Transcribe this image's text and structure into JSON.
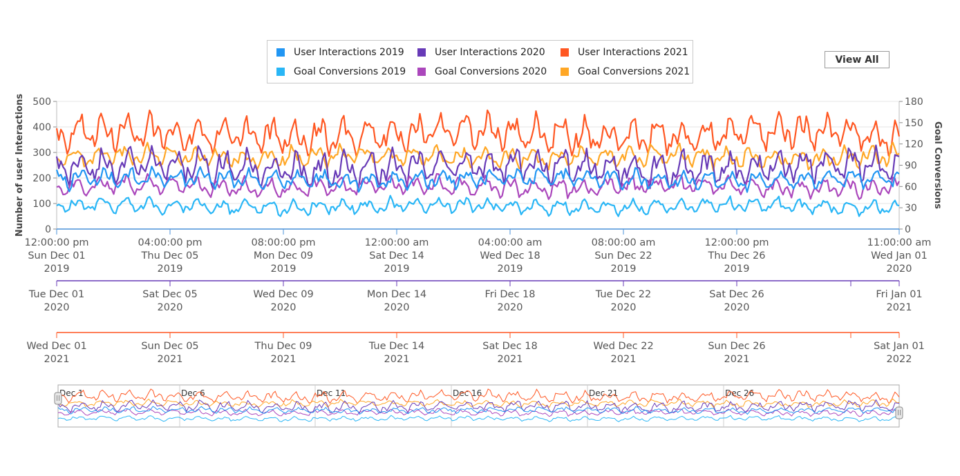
{
  "view_all_label": "View All",
  "legend": [
    {
      "name": "User Interactions 2019",
      "color": "#2196f3"
    },
    {
      "name": "User Interactions 2020",
      "color": "#673ab7"
    },
    {
      "name": "User Interactions 2021",
      "color": "#ff5722"
    },
    {
      "name": "Goal Conversions 2019",
      "color": "#29b6f6"
    },
    {
      "name": "Goal Conversions 2020",
      "color": "#ab47bc"
    },
    {
      "name": "Goal Conversions 2021",
      "color": "#ffa726"
    }
  ],
  "chart_data": {
    "type": "line",
    "x_range": [
      "2019-12-01 12:00",
      "2020-01-01 11:00"
    ],
    "left_axis": {
      "label": "Number of user Interactions",
      "ylim": [
        0,
        500
      ],
      "ticks": [
        "0",
        "100",
        "200",
        "300",
        "400",
        "500"
      ]
    },
    "right_axis": {
      "label": "Goal Conversions",
      "ylim": [
        0,
        180
      ],
      "ticks": [
        "0",
        "30",
        "60",
        "90",
        "120",
        "150",
        "180"
      ]
    },
    "x_axis_2019": {
      "ticks": [
        {
          "time": "12:00:00 pm",
          "date": "Sun Dec 01",
          "year": "2019"
        },
        {
          "time": "04:00:00 pm",
          "date": "Thu Dec 05",
          "year": "2019"
        },
        {
          "time": "08:00:00 pm",
          "date": "Mon Dec 09",
          "year": "2019"
        },
        {
          "time": "12:00:00 am",
          "date": "Sat Dec 14",
          "year": "2019"
        },
        {
          "time": "04:00:00 am",
          "date": "Wed Dec 18",
          "year": "2019"
        },
        {
          "time": "08:00:00 am",
          "date": "Sun Dec 22",
          "year": "2019"
        },
        {
          "time": "12:00:00 pm",
          "date": "Thu Dec 26",
          "year": "2019"
        },
        {
          "time": "11:00:00 am",
          "date": "Wed Jan 01",
          "year": "2020"
        }
      ]
    },
    "x_axis_2020": {
      "ticks": [
        {
          "date": "Tue Dec 01",
          "year": "2020"
        },
        {
          "date": "Sat Dec 05",
          "year": "2020"
        },
        {
          "date": "Wed Dec 09",
          "year": "2020"
        },
        {
          "date": "Mon Dec 14",
          "year": "2020"
        },
        {
          "date": "Fri Dec 18",
          "year": "2020"
        },
        {
          "date": "Tue Dec 22",
          "year": "2020"
        },
        {
          "date": "Sat Dec 26",
          "year": "2020"
        },
        {
          "date": "Fri Jan 01",
          "year": "2021"
        }
      ]
    },
    "x_axis_2021": {
      "ticks": [
        {
          "date": "Wed Dec 01",
          "year": "2021"
        },
        {
          "date": "Sun Dec 05",
          "year": "2021"
        },
        {
          "date": "Thu Dec 09",
          "year": "2021"
        },
        {
          "date": "Tue Dec 14",
          "year": "2021"
        },
        {
          "date": "Sat Dec 18",
          "year": "2021"
        },
        {
          "date": "Wed Dec 22",
          "year": "2021"
        },
        {
          "date": "Sun Dec 26",
          "year": "2021"
        },
        {
          "date": "Sat Jan 01",
          "year": "2022"
        }
      ]
    },
    "navigator_labels": [
      "Dec 1",
      "Dec 6",
      "Dec 11",
      "Dec 16",
      "Dec 21",
      "Dec 26"
    ],
    "series": [
      {
        "name": "User Interactions 2019",
        "axis": "left",
        "color": "#2196f3",
        "approx_mean": 195,
        "approx_min": 140,
        "approx_max": 245
      },
      {
        "name": "User Interactions 2020",
        "axis": "left",
        "color": "#673ab7",
        "approx_mean": 240,
        "approx_min": 150,
        "approx_max": 335
      },
      {
        "name": "User Interactions 2021",
        "axis": "left",
        "color": "#ff5722",
        "approx_mean": 370,
        "approx_min": 270,
        "approx_max": 465
      },
      {
        "name": "Goal Conversions 2019",
        "axis": "right",
        "color": "#29b6f6",
        "approx_mean": 32,
        "approx_min": 18,
        "approx_max": 48
      },
      {
        "name": "Goal Conversions 2020",
        "axis": "right",
        "color": "#ab47bc",
        "approx_mean": 60,
        "approx_min": 42,
        "approx_max": 80
      },
      {
        "name": "Goal Conversions 2021",
        "axis": "right",
        "color": "#ffa726",
        "approx_mean": 102,
        "approx_min": 80,
        "approx_max": 122
      }
    ]
  }
}
